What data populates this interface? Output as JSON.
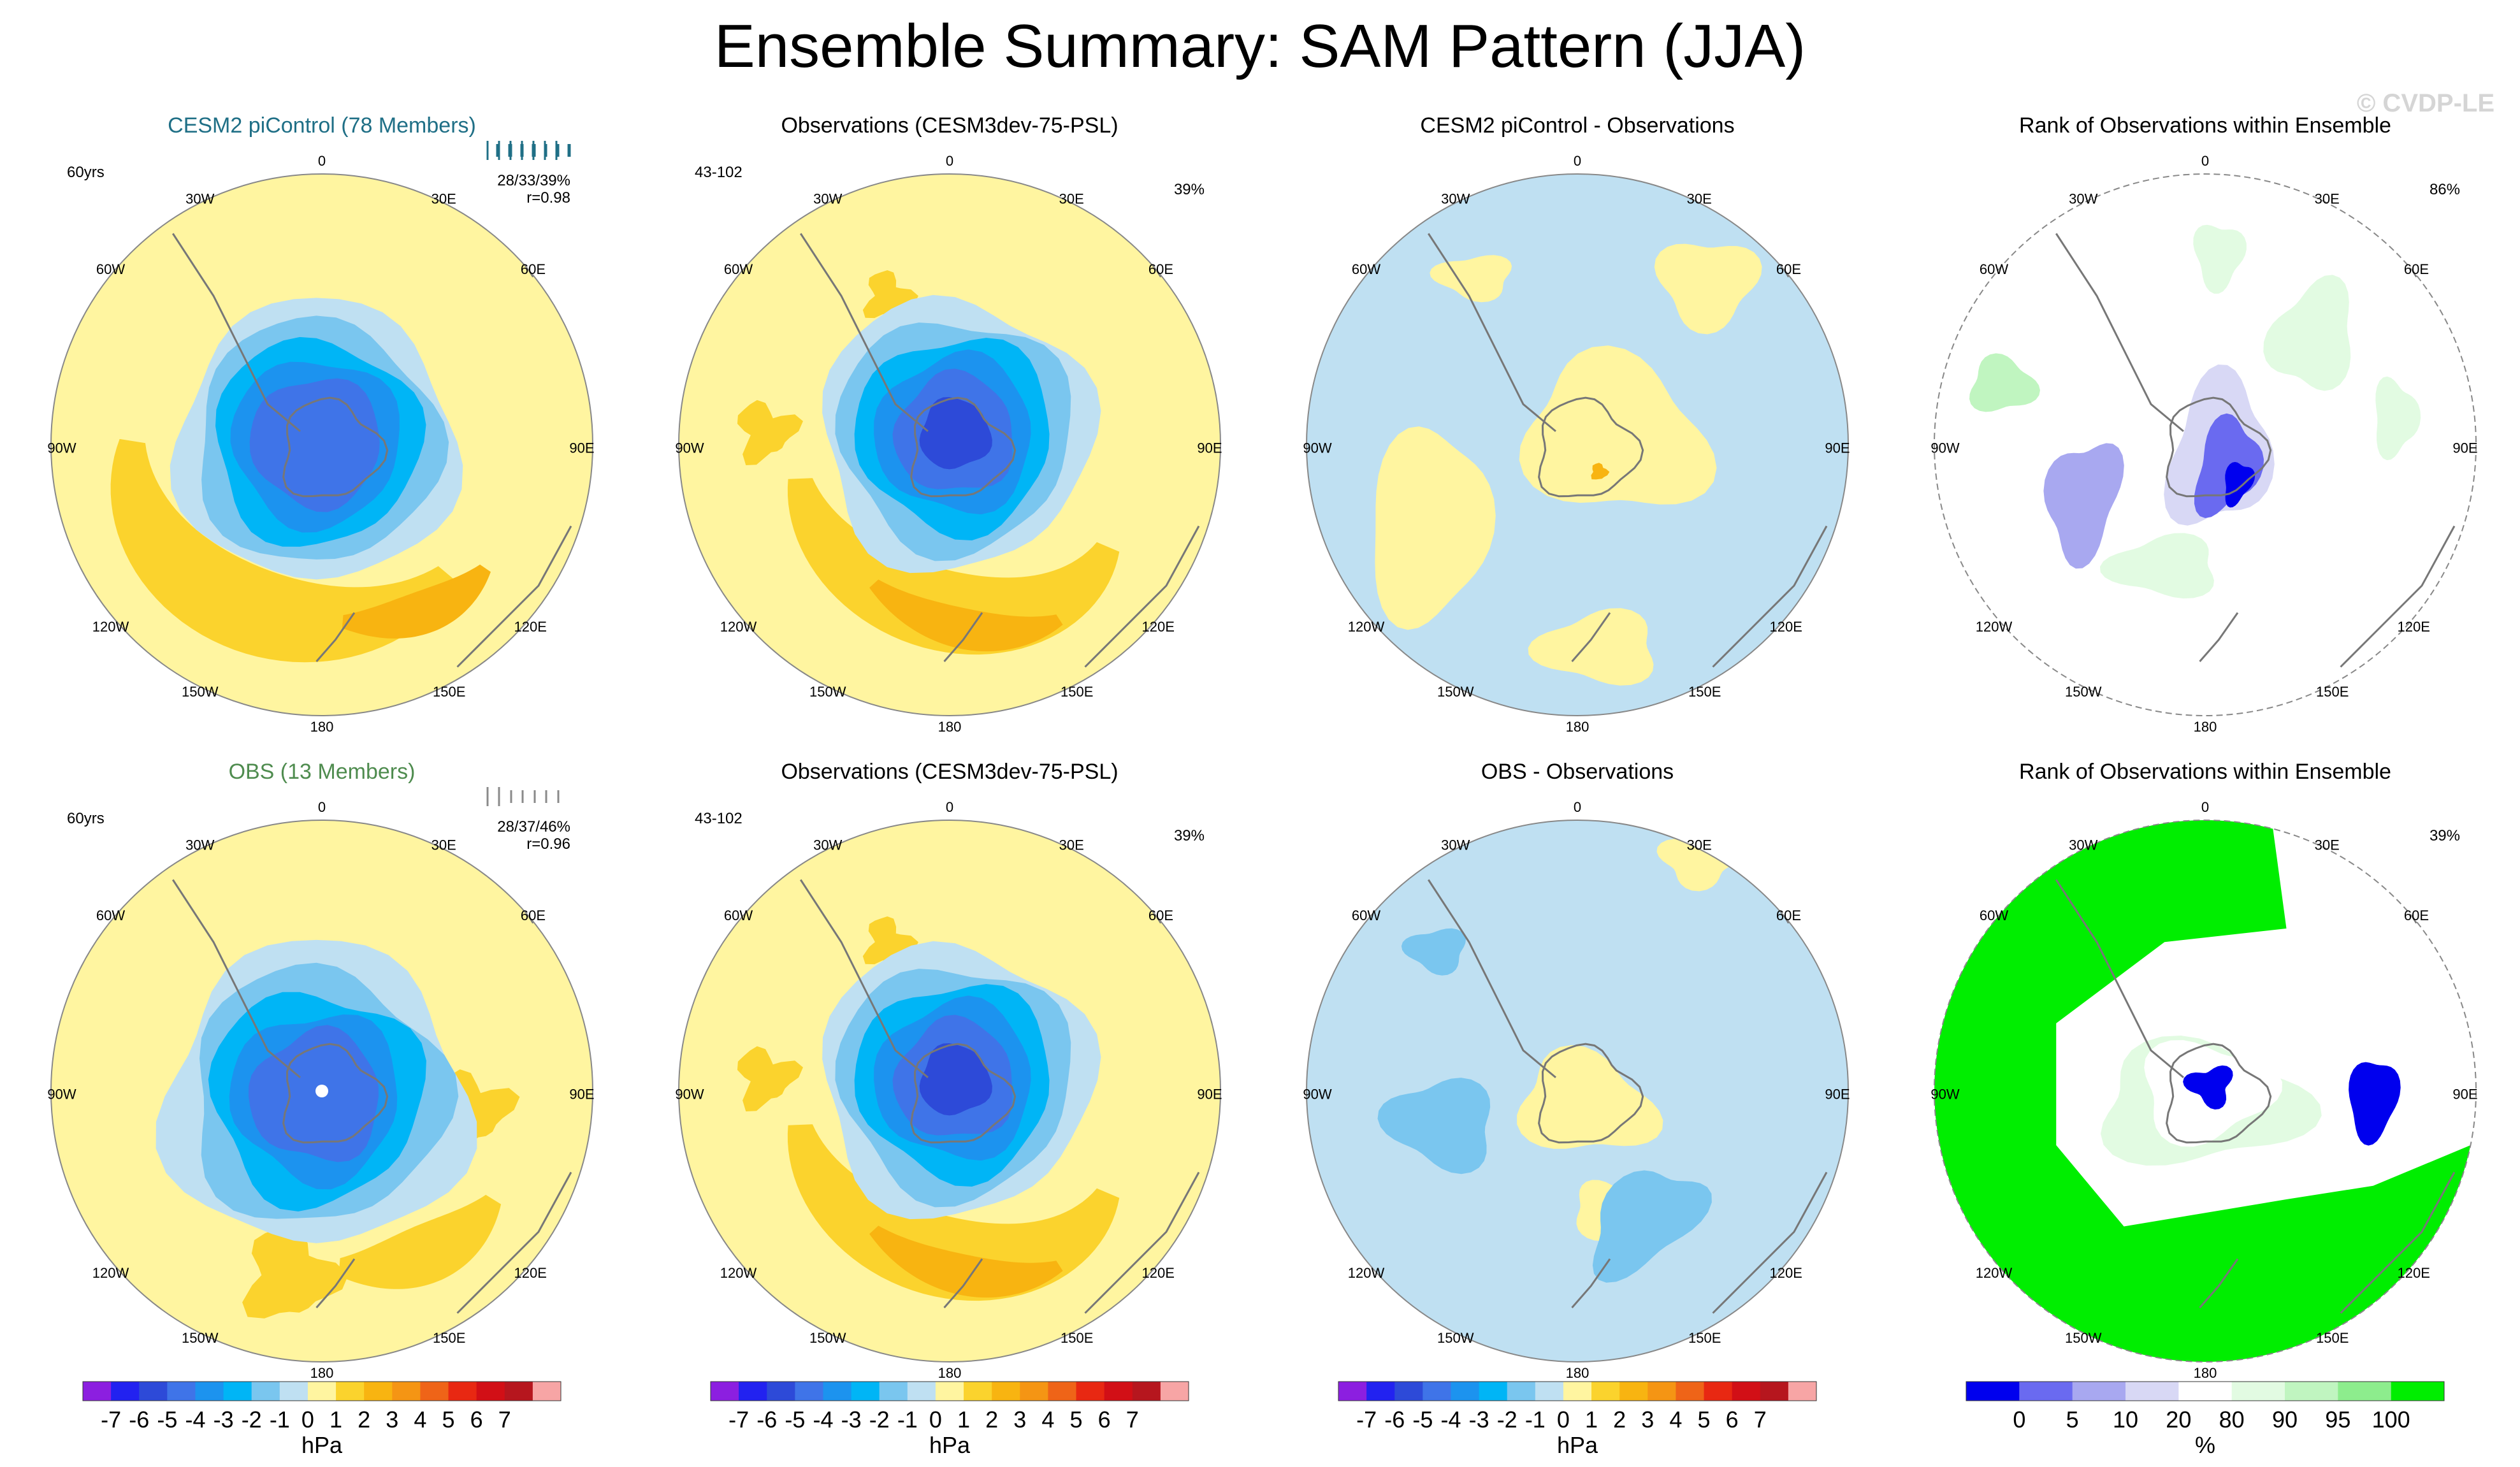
{
  "title": "Ensemble Summary: SAM Pattern (JJA)",
  "copyright": "© CVDP-LE",
  "colors": {
    "hpa_scale": [
      "#8c1fe0",
      "#2222f0",
      "#2d4ad8",
      "#3f74e8",
      "#1c93ef",
      "#00b5f6",
      "#7ac6ef",
      "#bfe0f2",
      "#fff5a0",
      "#fbd32d",
      "#f8b411",
      "#f59514",
      "#ef6418",
      "#e82812",
      "#d20f16",
      "#b6161e",
      "#f7a5a5"
    ],
    "rank_scale": [
      "#0000ee",
      "#6a6af0",
      "#a8a8f0",
      "#d8d8f5",
      "#ffffff",
      "#e2fbe2",
      "#c0f5c0",
      "#8ded8d",
      "#00ee00"
    ],
    "ens1_label": "#1f6f86",
    "ens2_label": "#4f8c4f",
    "coast": "#777777"
  },
  "meridian_labels": [
    "0",
    "30E",
    "60E",
    "90E",
    "120E",
    "150E",
    "180",
    "150W",
    "120W",
    "90W",
    "60W",
    "30W"
  ],
  "chart_data": [
    {
      "type": "polar-map",
      "row": 1,
      "col": 1,
      "title": "CESM2 piControl (78 Members)",
      "title_color": "#1f6f86",
      "corner_left": "60yrs",
      "stats": [
        "28/33/39%",
        "r=0.98"
      ],
      "ensemble_ticks": "many",
      "field": "cesm2_sam",
      "units": "hPa"
    },
    {
      "type": "polar-map",
      "row": 1,
      "col": 2,
      "title": "Observations (CESM3dev-75-PSL)",
      "corner_left": "43-102",
      "corner_right": "39%",
      "field": "obs_sam",
      "units": "hPa"
    },
    {
      "type": "polar-map",
      "row": 1,
      "col": 3,
      "title": "CESM2 piControl - Observations",
      "field": "diff1",
      "units": "hPa"
    },
    {
      "type": "polar-map",
      "row": 1,
      "col": 4,
      "title": "Rank of Observations within Ensemble",
      "corner_right": "86%",
      "field": "rank1",
      "units": "%"
    },
    {
      "type": "polar-map",
      "row": 2,
      "col": 1,
      "title": "OBS (13 Members)",
      "title_color": "#4f8c4f",
      "corner_left": "60yrs",
      "stats": [
        "28/37/46%",
        "r=0.96"
      ],
      "ensemble_ticks": "few",
      "field": "obsens_sam",
      "units": "hPa"
    },
    {
      "type": "polar-map",
      "row": 2,
      "col": 2,
      "title": "Observations (CESM3dev-75-PSL)",
      "corner_left": "43-102",
      "corner_right": "39%",
      "field": "obs_sam",
      "units": "hPa"
    },
    {
      "type": "polar-map",
      "row": 2,
      "col": 3,
      "title": "OBS - Observations",
      "field": "diff2",
      "units": "hPa"
    },
    {
      "type": "polar-map",
      "row": 2,
      "col": 4,
      "title": "Rank of Observations within Ensemble",
      "corner_right": "39%",
      "field": "rank2",
      "units": "%"
    }
  ],
  "colorbars": [
    {
      "type": "hpa",
      "labels": [
        "-7",
        "-6",
        "-5",
        "-4",
        "-3",
        "-2",
        "-1",
        "0",
        "1",
        "2",
        "3",
        "4",
        "5",
        "6",
        "7"
      ],
      "unit": "hPa"
    },
    {
      "type": "hpa",
      "labels": [
        "-7",
        "-6",
        "-5",
        "-4",
        "-3",
        "-2",
        "-1",
        "0",
        "1",
        "2",
        "3",
        "4",
        "5",
        "6",
        "7"
      ],
      "unit": "hPa"
    },
    {
      "type": "hpa",
      "labels": [
        "-7",
        "-6",
        "-5",
        "-4",
        "-3",
        "-2",
        "-1",
        "0",
        "1",
        "2",
        "3",
        "4",
        "5",
        "6",
        "7"
      ],
      "unit": "hPa"
    },
    {
      "type": "rank",
      "labels": [
        "0",
        "5",
        "10",
        "20",
        "80",
        "90",
        "95",
        "100"
      ],
      "unit": "%"
    }
  ]
}
